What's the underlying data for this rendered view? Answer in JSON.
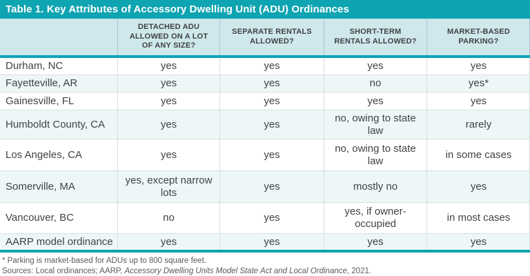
{
  "title": "Table 1. Key Attributes of Accessory Dwelling Unit (ADU) Ordinances",
  "columns": [
    "",
    "DETACHED ADU ALLOWED ON A LOT OF ANY SIZE?",
    "SEPARATE RENTALS ALLOWED?",
    "SHORT-TERM RENTALS ALLOWED?",
    "MARKET-BASED PARKING?"
  ],
  "rows": [
    {
      "city": "Durham, NC",
      "values": [
        "yes",
        "yes",
        "yes",
        "yes"
      ]
    },
    {
      "city": "Fayetteville, AR",
      "values": [
        "yes",
        "yes",
        "no",
        "yes*"
      ]
    },
    {
      "city": "Gainesville, FL",
      "values": [
        "yes",
        "yes",
        "yes",
        "yes"
      ]
    },
    {
      "city": "Humboldt County, CA",
      "values": [
        "yes",
        "yes",
        "no, owing to state law",
        "rarely"
      ]
    },
    {
      "city": "Los Angeles, CA",
      "values": [
        "yes",
        "yes",
        "no, owing to state law",
        "in some cases"
      ]
    },
    {
      "city": "Somerville, MA",
      "values": [
        "yes, except narrow lots",
        "yes",
        "mostly no",
        "yes"
      ]
    },
    {
      "city": "Vancouver, BC",
      "values": [
        "no",
        "yes",
        "yes, if owner-occupied",
        "in most cases"
      ]
    },
    {
      "city": "AARP model ordinance",
      "values": [
        "yes",
        "yes",
        "yes",
        "yes"
      ]
    }
  ],
  "footnotes": {
    "note1": "* Parking is market-based for ADUs up to 800 square feet.",
    "sources_prefix": "Sources: Local ordinances; AARP, ",
    "sources_italic": "Accessory Dwelling Units Model State Act and Local Ordinance",
    "sources_suffix": ", 2021."
  },
  "colors": {
    "teal": "#0ea4b2",
    "header_band_bg": "#cfe8ec",
    "row_alt_bg": "#eef7f7",
    "text_dark": "#414245",
    "footnote_gray": "#595a5c"
  }
}
